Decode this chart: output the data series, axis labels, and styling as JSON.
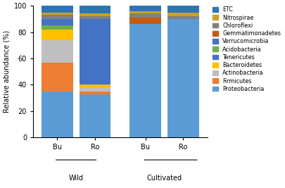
{
  "bar_labels": [
    "Bu",
    "Ro",
    "Bu",
    "Ro"
  ],
  "x_positions": [
    0,
    0.6,
    1.4,
    2.0
  ],
  "bar_width": 0.5,
  "ylabel": "Relative abundance (%)",
  "ylim": [
    0,
    100
  ],
  "yticks": [
    0,
    20,
    40,
    60,
    80,
    100
  ],
  "group_labels": [
    "Wild",
    "Cultivated"
  ],
  "group_centers": [
    0.3,
    1.7
  ],
  "phyla_order": [
    "Proteobacteria",
    "Firmicutes",
    "Actinobacteria",
    "Bacteroidetes",
    "Tenericutes",
    "Acidobacteria",
    "Verrucomicrobia",
    "Gemmatimonadetes",
    "Chloroflexi",
    "Nitrospirae",
    "ETC"
  ],
  "color_map": {
    "Proteobacteria": "#5B9BD5",
    "Firmicutes": "#ED7D31",
    "Actinobacteria": "#BFBFBF",
    "Bacteroidetes": "#FFC000",
    "Tenericutes": "#4472C4",
    "Acidobacteria": "#70AD47",
    "Verrucomicrobia": "#4472C4",
    "Gemmatimonadetes": "#C55A11",
    "Chloroflexi": "#808080",
    "Nitrospirae": "#C9A227",
    "ETC": "#2E75B6"
  },
  "bar_data": {
    "Proteobacteria": [
      35,
      33,
      86,
      90
    ],
    "Firmicutes": [
      22,
      2,
      0,
      0
    ],
    "Actinobacteria": [
      17,
      3,
      0,
      0
    ],
    "Bacteroidetes": [
      8,
      2,
      0,
      0
    ],
    "Tenericutes": [
      0,
      0,
      0,
      0
    ],
    "Acidobacteria": [
      3,
      0,
      0,
      0
    ],
    "Verrucomicrobia": [
      5,
      50,
      0,
      0
    ],
    "Gemmatimonadetes": [
      0,
      0,
      5,
      0
    ],
    "Chloroflexi": [
      3,
      2,
      3,
      2
    ],
    "Nitrospirae": [
      2,
      2,
      2,
      3
    ],
    "ETC": [
      5,
      6,
      4,
      5
    ]
  },
  "legend_order": [
    "ETC",
    "Nitrospirae",
    "Chloroflexi",
    "Gemmatimonadetes",
    "Verrucomicrobia",
    "Acidobacteria",
    "Tenericutes",
    "Bacteroidetes",
    "Actinobacteria",
    "Firmicutes",
    "Proteobacteria"
  ],
  "legend_colors": {
    "ETC": "#2E75B6",
    "Nitrospirae": "#C9A227",
    "Chloroflexi": "#808080",
    "Gemmatimonadetes": "#C55A11",
    "Verrucomicrobia": "#4472C4",
    "Acidobacteria": "#70AD47",
    "Tenericutes": "#4472C4",
    "Bacteroidetes": "#FFC000",
    "Actinobacteria": "#BFBFBF",
    "Firmicutes": "#ED7D31",
    "Proteobacteria": "#5B9BD5"
  },
  "background_color": "#ffffff"
}
